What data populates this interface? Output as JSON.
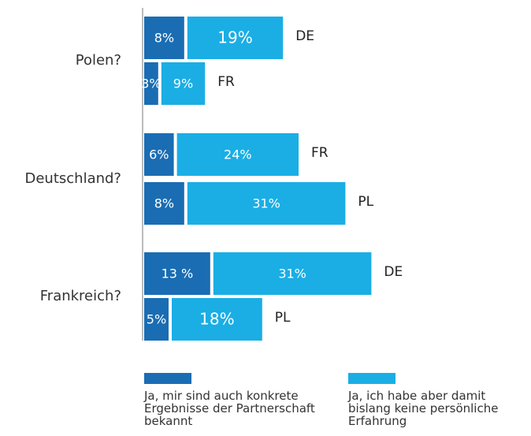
{
  "chart_data": {
    "type": "bar",
    "orientation": "horizontal",
    "stacked": true,
    "groups": [
      {
        "label": "Polen?",
        "categories": [
          "DE",
          "FR"
        ]
      },
      {
        "label": "Deutschland?",
        "categories": [
          "FR",
          "PL"
        ]
      },
      {
        "label": "Frankreich?",
        "categories": [
          "DE",
          "PL"
        ]
      }
    ],
    "series": [
      {
        "name": "Ja, mir sind auch konkrete Ergebnisse der Partnerschaft bekannt",
        "color": "#1a6db3",
        "values": [
          8,
          3,
          6,
          8,
          13,
          5
        ],
        "value_labels": [
          "8%",
          "3%",
          "6%",
          "8%",
          "13 %",
          "5%"
        ]
      },
      {
        "name": "Ja, ich habe aber damit bislang keine persönliche Erfahrung",
        "color": "#1aaee5",
        "values": [
          19,
          9,
          24,
          31,
          31,
          18
        ],
        "value_labels": [
          "19%",
          "9%",
          "24%",
          "31%",
          "31%",
          "18%"
        ]
      }
    ]
  }
}
